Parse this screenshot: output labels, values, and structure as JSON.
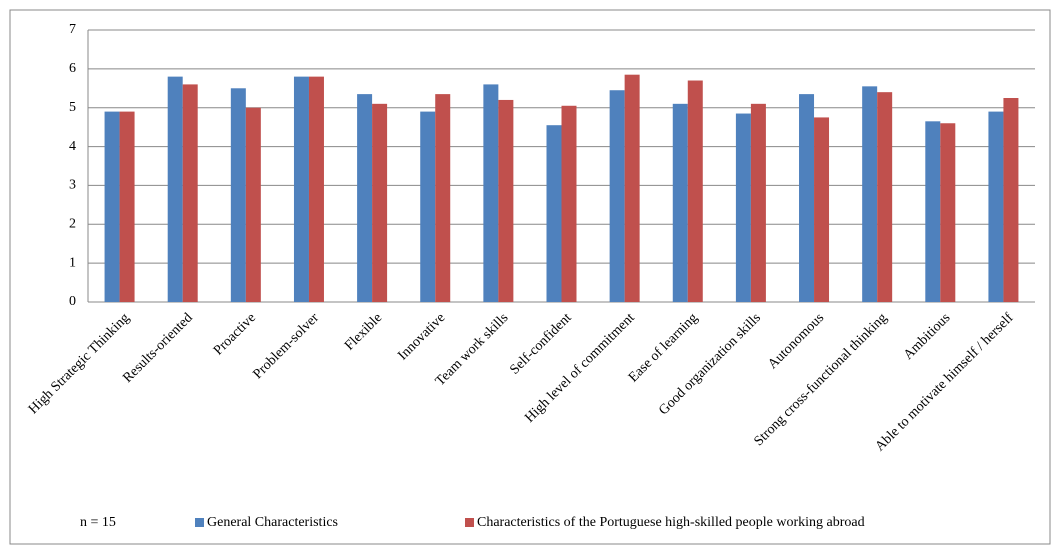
{
  "chart_data": {
    "type": "bar",
    "annotation": "n = 15",
    "categories": [
      "High Strategic Thinking",
      "Results-oriented",
      "Proactive",
      "Problem-solver",
      "Flexible",
      "Innovative",
      "Team work skills",
      "Self-confident",
      "High level of commitment",
      "Ease of learning",
      "Good organization skills",
      "Autonomous",
      "Strong cross-functional thinking",
      "Ambitious",
      "Able to motivate himself / herself"
    ],
    "series": [
      {
        "name": "General Characteristics",
        "color": "#4f81bd",
        "values": [
          4.9,
          5.8,
          5.5,
          5.8,
          5.35,
          4.9,
          5.6,
          4.55,
          5.45,
          5.1,
          4.85,
          5.35,
          5.55,
          4.65,
          4.9
        ]
      },
      {
        "name": "Characteristics of the Portuguese high-skilled people working abroad",
        "color": "#c0504d",
        "values": [
          4.9,
          5.6,
          5.0,
          5.8,
          5.1,
          5.35,
          5.2,
          5.05,
          5.85,
          5.7,
          5.1,
          4.75,
          5.4,
          4.6,
          5.25
        ]
      }
    ],
    "ylim": [
      0,
      7
    ],
    "yticks": [
      0,
      1,
      2,
      3,
      4,
      5,
      6,
      7
    ],
    "grid": true,
    "legend": "bottom"
  }
}
